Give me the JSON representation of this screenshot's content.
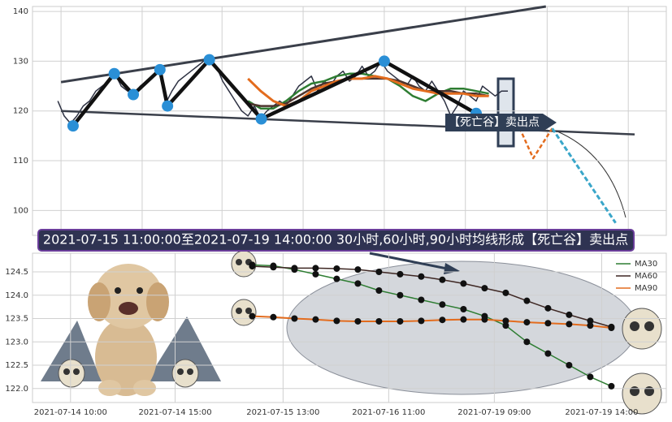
{
  "banner": "2021-07-15 11:00:00至2021-07-19 14:00:00 30小时,60小时,90小时均线形成【死亡谷】卖出点",
  "chart_data": [
    {
      "type": "line",
      "xlim": [
        0,
        100
      ],
      "xticks": [
        4.5,
        17.3,
        29.9,
        42.7,
        55.5,
        68.3,
        81.2,
        94
      ],
      "ylim": [
        95,
        141
      ],
      "yticks": [
        100,
        110,
        120,
        130,
        140
      ],
      "grid": true,
      "annotation": "【死亡谷】卖出点",
      "series": [
        {
          "color": "#2d3142",
          "width": 1.5,
          "x": [
            4,
            5,
            6,
            7,
            8,
            9,
            10,
            11,
            12,
            13,
            14,
            15,
            16,
            17,
            18,
            19,
            20,
            21,
            22,
            23,
            24,
            25,
            26,
            27,
            28,
            29,
            30,
            31,
            32,
            33,
            34,
            35,
            36,
            37,
            38,
            39,
            40,
            41,
            42,
            43,
            44,
            45,
            46,
            47,
            48,
            49,
            50,
            51,
            52,
            53,
            54,
            55,
            56,
            57,
            58,
            59,
            60,
            61,
            62,
            63,
            64,
            65,
            66,
            67,
            68,
            69,
            70,
            71,
            72,
            73,
            74,
            75
          ],
          "values": [
            122,
            119,
            117.5,
            119,
            121,
            122,
            124,
            125,
            126,
            127.5,
            125,
            124,
            123.5,
            125,
            126,
            127,
            128,
            121.5,
            124,
            126,
            127,
            128,
            129,
            130,
            130.5,
            129,
            126,
            124,
            122,
            120,
            119,
            121,
            118.5,
            120,
            121,
            122,
            121,
            123,
            125,
            126,
            127,
            124,
            126,
            125,
            127,
            128,
            126,
            127,
            129,
            127,
            128,
            130,
            128,
            127,
            126,
            125,
            127,
            125,
            124,
            126,
            124,
            122,
            119,
            121,
            124,
            123,
            122,
            125,
            124,
            123,
            124,
            124
          ]
        },
        {
          "color": "#3a3f4a",
          "width": 3,
          "x": [
            4.5,
            81
          ],
          "values": [
            125.8,
            141
          ]
        },
        {
          "color": "#3a3f4a",
          "width": 2.5,
          "x": [
            4.5,
            95
          ],
          "values": [
            120,
            115.3
          ]
        },
        {
          "color": "#2e7d32",
          "width": 2.5,
          "x": [
            34,
            36,
            38,
            40,
            42,
            44,
            46,
            48,
            50,
            52,
            54,
            56,
            58,
            60,
            62,
            64,
            66,
            68,
            70,
            72
          ],
          "values": [
            122,
            120.5,
            120.5,
            122,
            124,
            125.5,
            126,
            127,
            127.5,
            127.5,
            127,
            126.5,
            125,
            123,
            122,
            123.5,
            124.5,
            124.5,
            124,
            123.5
          ]
        },
        {
          "color": "#4e342e",
          "width": 2.5,
          "x": [
            34,
            36,
            38,
            40,
            42,
            44,
            46,
            48,
            50,
            52,
            54,
            56,
            58,
            60,
            62,
            64,
            66,
            68,
            70,
            72
          ],
          "values": [
            121.5,
            121,
            121,
            121.5,
            123,
            124.5,
            125.5,
            126,
            126.5,
            126.5,
            126.5,
            126.5,
            126,
            125,
            124,
            124,
            124,
            123.5,
            123.5,
            123
          ]
        },
        {
          "color": "#e36c1e",
          "width": 3,
          "x": [
            34,
            36,
            38,
            40,
            42,
            44,
            46,
            48,
            50,
            52,
            54,
            56,
            58,
            60,
            62,
            64,
            66,
            68,
            70,
            72
          ],
          "values": [
            126.5,
            124,
            122,
            121,
            122,
            124,
            125,
            126,
            126.5,
            126.5,
            127,
            126.5,
            125.5,
            124.5,
            124,
            123.5,
            123.5,
            123.5,
            123,
            123
          ]
        },
        {
          "color": "#111111",
          "width": 4.5,
          "markers": true,
          "marker_color": "#2a8fd6",
          "x": [
            6.4,
            12.9,
            15.9,
            20.1,
            21.3,
            27.9,
            36.1,
            55.5,
            70
          ],
          "values": [
            117,
            127.5,
            123.3,
            128.3,
            121,
            130.3,
            118.4,
            130,
            119.5
          ]
        },
        {
          "color": "#e36c1e",
          "width": 2.5,
          "dash": "5 3",
          "x": [
            76,
            79,
            82
          ],
          "values": [
            119,
            110.5,
            116.5
          ]
        },
        {
          "color": "#3aa6c9",
          "width": 3,
          "dash": "6 3",
          "x": [
            82,
            92
          ],
          "values": [
            116.5,
            97.5
          ]
        }
      ]
    },
    {
      "type": "line",
      "xlim": [
        -10.4,
        19.6
      ],
      "xticks": [
        {
          "value": -8.6,
          "label": "2021-07-14 10:00"
        },
        {
          "value": -3.65,
          "label": "2021-07-14 15:00"
        },
        {
          "value": 1.46,
          "label": "2021-07-15 13:00"
        },
        {
          "value": 6.46,
          "label": "2021-07-16 11:00"
        },
        {
          "value": 11.46,
          "label": "2021-07-19 09:00"
        },
        {
          "value": 16.54,
          "label": "2021-07-19 14:00"
        }
      ],
      "ylim": [
        121.7,
        124.9
      ],
      "yticks": [
        {
          "value": 122,
          "label": "122.0"
        },
        122.5,
        {
          "value": 123,
          "label": "123.0"
        },
        123.5,
        {
          "value": 124,
          "label": "124.0"
        },
        124.5
      ],
      "grid": true,
      "legend": "upper right",
      "series": [
        {
          "name": "MA30",
          "color": "#2e7d32",
          "width": 1.5,
          "markers": true,
          "marker_color": "#111111",
          "x": [
            0,
            1,
            2,
            3,
            4,
            5,
            6,
            7,
            8,
            9,
            10,
            11,
            12,
            13,
            14,
            15,
            16,
            17
          ],
          "values": [
            124.65,
            124.63,
            124.55,
            124.45,
            124.35,
            124.25,
            124.1,
            124.0,
            123.9,
            123.8,
            123.7,
            123.55,
            123.35,
            123.0,
            122.75,
            122.5,
            122.25,
            122.05
          ]
        },
        {
          "name": "MA60",
          "color": "#3e2723",
          "width": 1.5,
          "markers": true,
          "marker_color": "#111111",
          "x": [
            0,
            1,
            2,
            3,
            4,
            5,
            6,
            7,
            8,
            9,
            10,
            11,
            12,
            13,
            14,
            15,
            16,
            17
          ],
          "values": [
            124.62,
            124.6,
            124.58,
            124.58,
            124.57,
            124.55,
            124.5,
            124.45,
            124.4,
            124.33,
            124.25,
            124.15,
            124.05,
            123.88,
            123.72,
            123.58,
            123.45,
            123.32
          ]
        },
        {
          "name": "MA90",
          "color": "#e36c1e",
          "width": 2,
          "markers": true,
          "marker_color": "#111111",
          "x": [
            0,
            1,
            2,
            3,
            4,
            5,
            6,
            7,
            8,
            9,
            10,
            11,
            12,
            13,
            14,
            15,
            16,
            17
          ],
          "values": [
            123.55,
            123.53,
            123.5,
            123.48,
            123.45,
            123.44,
            123.44,
            123.44,
            123.45,
            123.47,
            123.48,
            123.48,
            123.45,
            123.42,
            123.4,
            123.38,
            123.35,
            123.3
          ]
        }
      ]
    }
  ]
}
